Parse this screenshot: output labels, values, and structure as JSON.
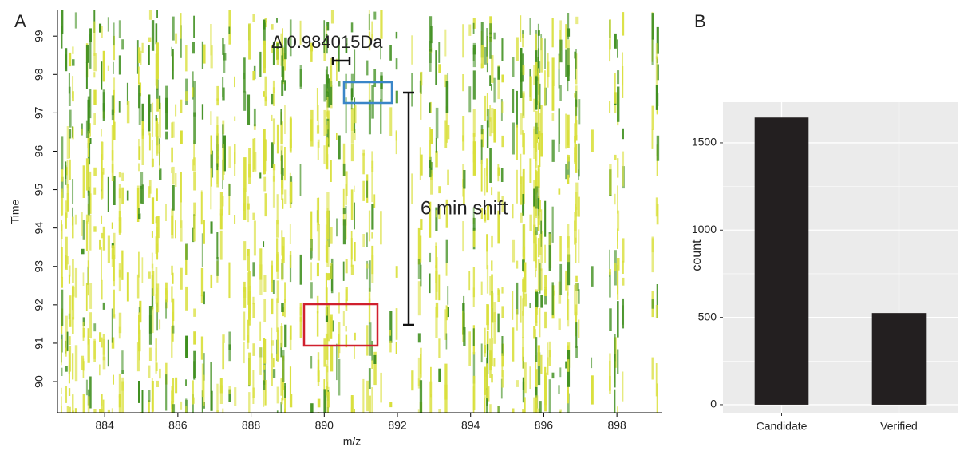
{
  "chart_data": [
    {
      "type": "image",
      "panel": "A",
      "xlabel": "m/z",
      "ylabel": "Time",
      "xlim": [
        882.71,
        899.24
      ],
      "xticks": [
        884,
        886,
        888,
        890,
        892,
        894,
        896,
        898
      ],
      "ylim": [
        89.19,
        99.69
      ],
      "yticks": [
        90,
        91,
        92,
        93,
        94,
        95,
        96,
        97,
        98,
        99
      ],
      "annotations": [
        "Δ 0.984015Da",
        "6 min shift"
      ]
    },
    {
      "type": "bar",
      "panel": "B",
      "ylabel": "count",
      "categories": [
        "Candidate",
        "Verified"
      ],
      "values": [
        1645,
        525
      ],
      "color": "#231f20",
      "ylim": [
        -46,
        1733
      ],
      "yticks": [
        0,
        500,
        1000,
        1500
      ],
      "grid": true
    }
  ]
}
